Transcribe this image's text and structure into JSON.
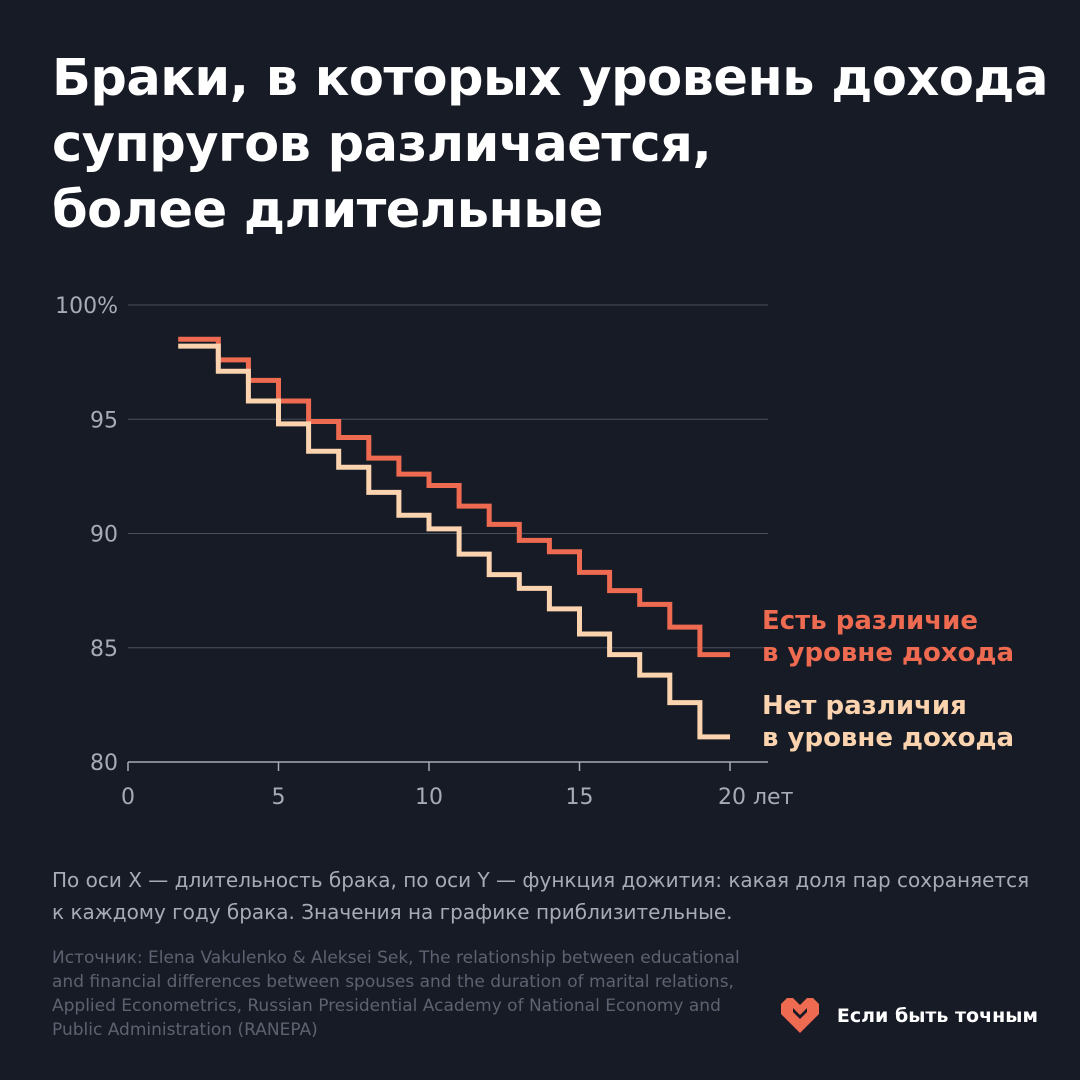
{
  "title_lines": [
    "Браки, в которых уровень дохода",
    "супругов различается,",
    "более длительные"
  ],
  "chart_data": {
    "type": "line",
    "step": true,
    "x_ticks": [
      "0",
      "5",
      "10",
      "15",
      "20 лет"
    ],
    "y_ticks": [
      "100%",
      "95",
      "90",
      "85",
      "80"
    ],
    "xlim": [
      0,
      21
    ],
    "ylim": [
      80,
      100
    ],
    "grid": true,
    "series": [
      {
        "name": "Есть различие в уровне дохода",
        "label_lines": [
          "Есть различие",
          "в уровне дохода"
        ],
        "color": "#ee6a50",
        "x": [
          2,
          3,
          4,
          5,
          6,
          7,
          8,
          9,
          10,
          11,
          12,
          13,
          14,
          15,
          16,
          17,
          18,
          19,
          20
        ],
        "y": [
          98.5,
          97.6,
          96.7,
          95.8,
          94.9,
          94.2,
          93.3,
          92.6,
          92.1,
          91.2,
          90.4,
          89.7,
          89.2,
          88.3,
          87.5,
          86.9,
          85.9,
          84.7,
          84.7
        ]
      },
      {
        "name": "Нет различия в уровне дохода",
        "label_lines": [
          "Нет различия",
          "в уровне дохода"
        ],
        "color": "#fbd3ae",
        "x": [
          2,
          3,
          4,
          5,
          6,
          7,
          8,
          9,
          10,
          11,
          12,
          13,
          14,
          15,
          16,
          17,
          18,
          19,
          20
        ],
        "y": [
          98.2,
          97.1,
          95.8,
          94.8,
          93.6,
          92.9,
          91.8,
          90.8,
          90.2,
          89.1,
          88.2,
          87.6,
          86.7,
          85.6,
          84.7,
          83.8,
          82.6,
          81.1,
          81.1
        ]
      }
    ]
  },
  "note": "По оси X — длительность брака, по оси Y — функция дожития: какая доля пар сохраняется к каждому году брака. Значения на графике приблизительные.",
  "source": "Источник: Elena Vakulenko & Aleksei Sek, The relationship between educational and financial differences between spouses and the duration of marital relations, Applied Econometrics, Russian Presidential Academy of National Economy and Public Administration (RANEPA)",
  "brand": {
    "name": "Если быть точным",
    "icon": "heart-logo-icon",
    "color": "#ee6a50"
  }
}
